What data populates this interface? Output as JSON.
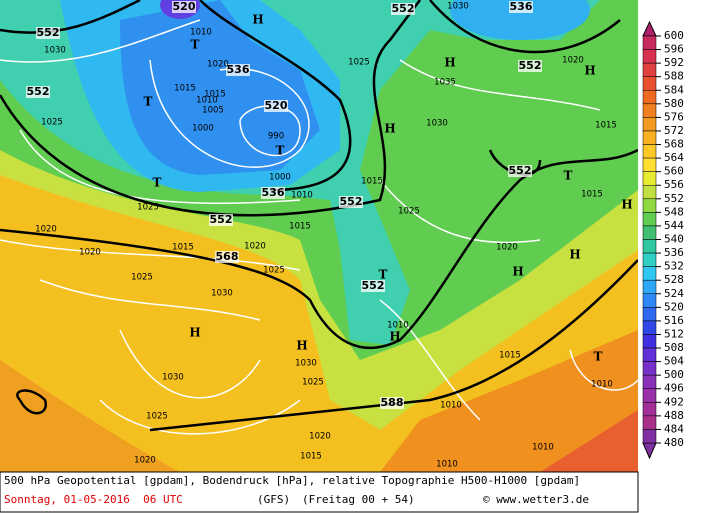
{
  "colorbar": {
    "levels": [
      600,
      596,
      592,
      588,
      584,
      580,
      576,
      572,
      568,
      564,
      560,
      556,
      552,
      548,
      544,
      540,
      536,
      532,
      528,
      524,
      520,
      516,
      512,
      508,
      504,
      500,
      496,
      492,
      488,
      484,
      480
    ],
    "colors": [
      "#b0206a",
      "#c82860",
      "#d83050",
      "#e04040",
      "#e85030",
      "#ee6a20",
      "#f08020",
      "#f49a20",
      "#f8b020",
      "#fcc828",
      "#ffe030",
      "#e8ec30",
      "#c0e040",
      "#90d840",
      "#60cc50",
      "#40c070",
      "#30c8a0",
      "#30d0c8",
      "#30c8f0",
      "#30a8f8",
      "#3088f8",
      "#3068f0",
      "#3048e8",
      "#4030e0",
      "#6030d8",
      "#7830c8",
      "#8830b8",
      "#9830a8",
      "#a03098",
      "#a83088",
      "#8030a0"
    ]
  },
  "map": {
    "geopotential_labels": [
      552,
      552,
      552,
      552,
      552,
      552,
      552,
      552,
      536,
      536,
      536,
      520,
      520,
      568,
      588
    ],
    "centers": [
      "T",
      "T",
      "T",
      "T",
      "T",
      "T",
      "T",
      "H",
      "H",
      "H",
      "H",
      "H",
      "H",
      "H",
      "H",
      "H",
      "H"
    ],
    "pressure_labels": [
      1030,
      1025,
      1010,
      1020,
      1015,
      1010,
      1015,
      1005,
      1000,
      990,
      1000,
      1010,
      1015,
      1015,
      1025,
      1030,
      1035,
      1030,
      1020,
      1015,
      1015,
      1025,
      1020,
      1025,
      1020,
      1020,
      1015,
      1020,
      1025,
      1025,
      1030,
      1030,
      1025,
      1020,
      1030,
      1025,
      1020,
      1015,
      1010,
      1015,
      1010,
      1010,
      1010,
      1010
    ]
  },
  "footer": {
    "description": "500 hPa Geopotential [gpdam], Bodendruck [hPa], relative Topographie H500-H1000 [gpdam]",
    "date": "Sonntag, 01-05-2016  06 UTC",
    "model": "(GFS)",
    "run": "(Freitag 00 + 54)",
    "copyright": "© www.wetter3.de"
  }
}
